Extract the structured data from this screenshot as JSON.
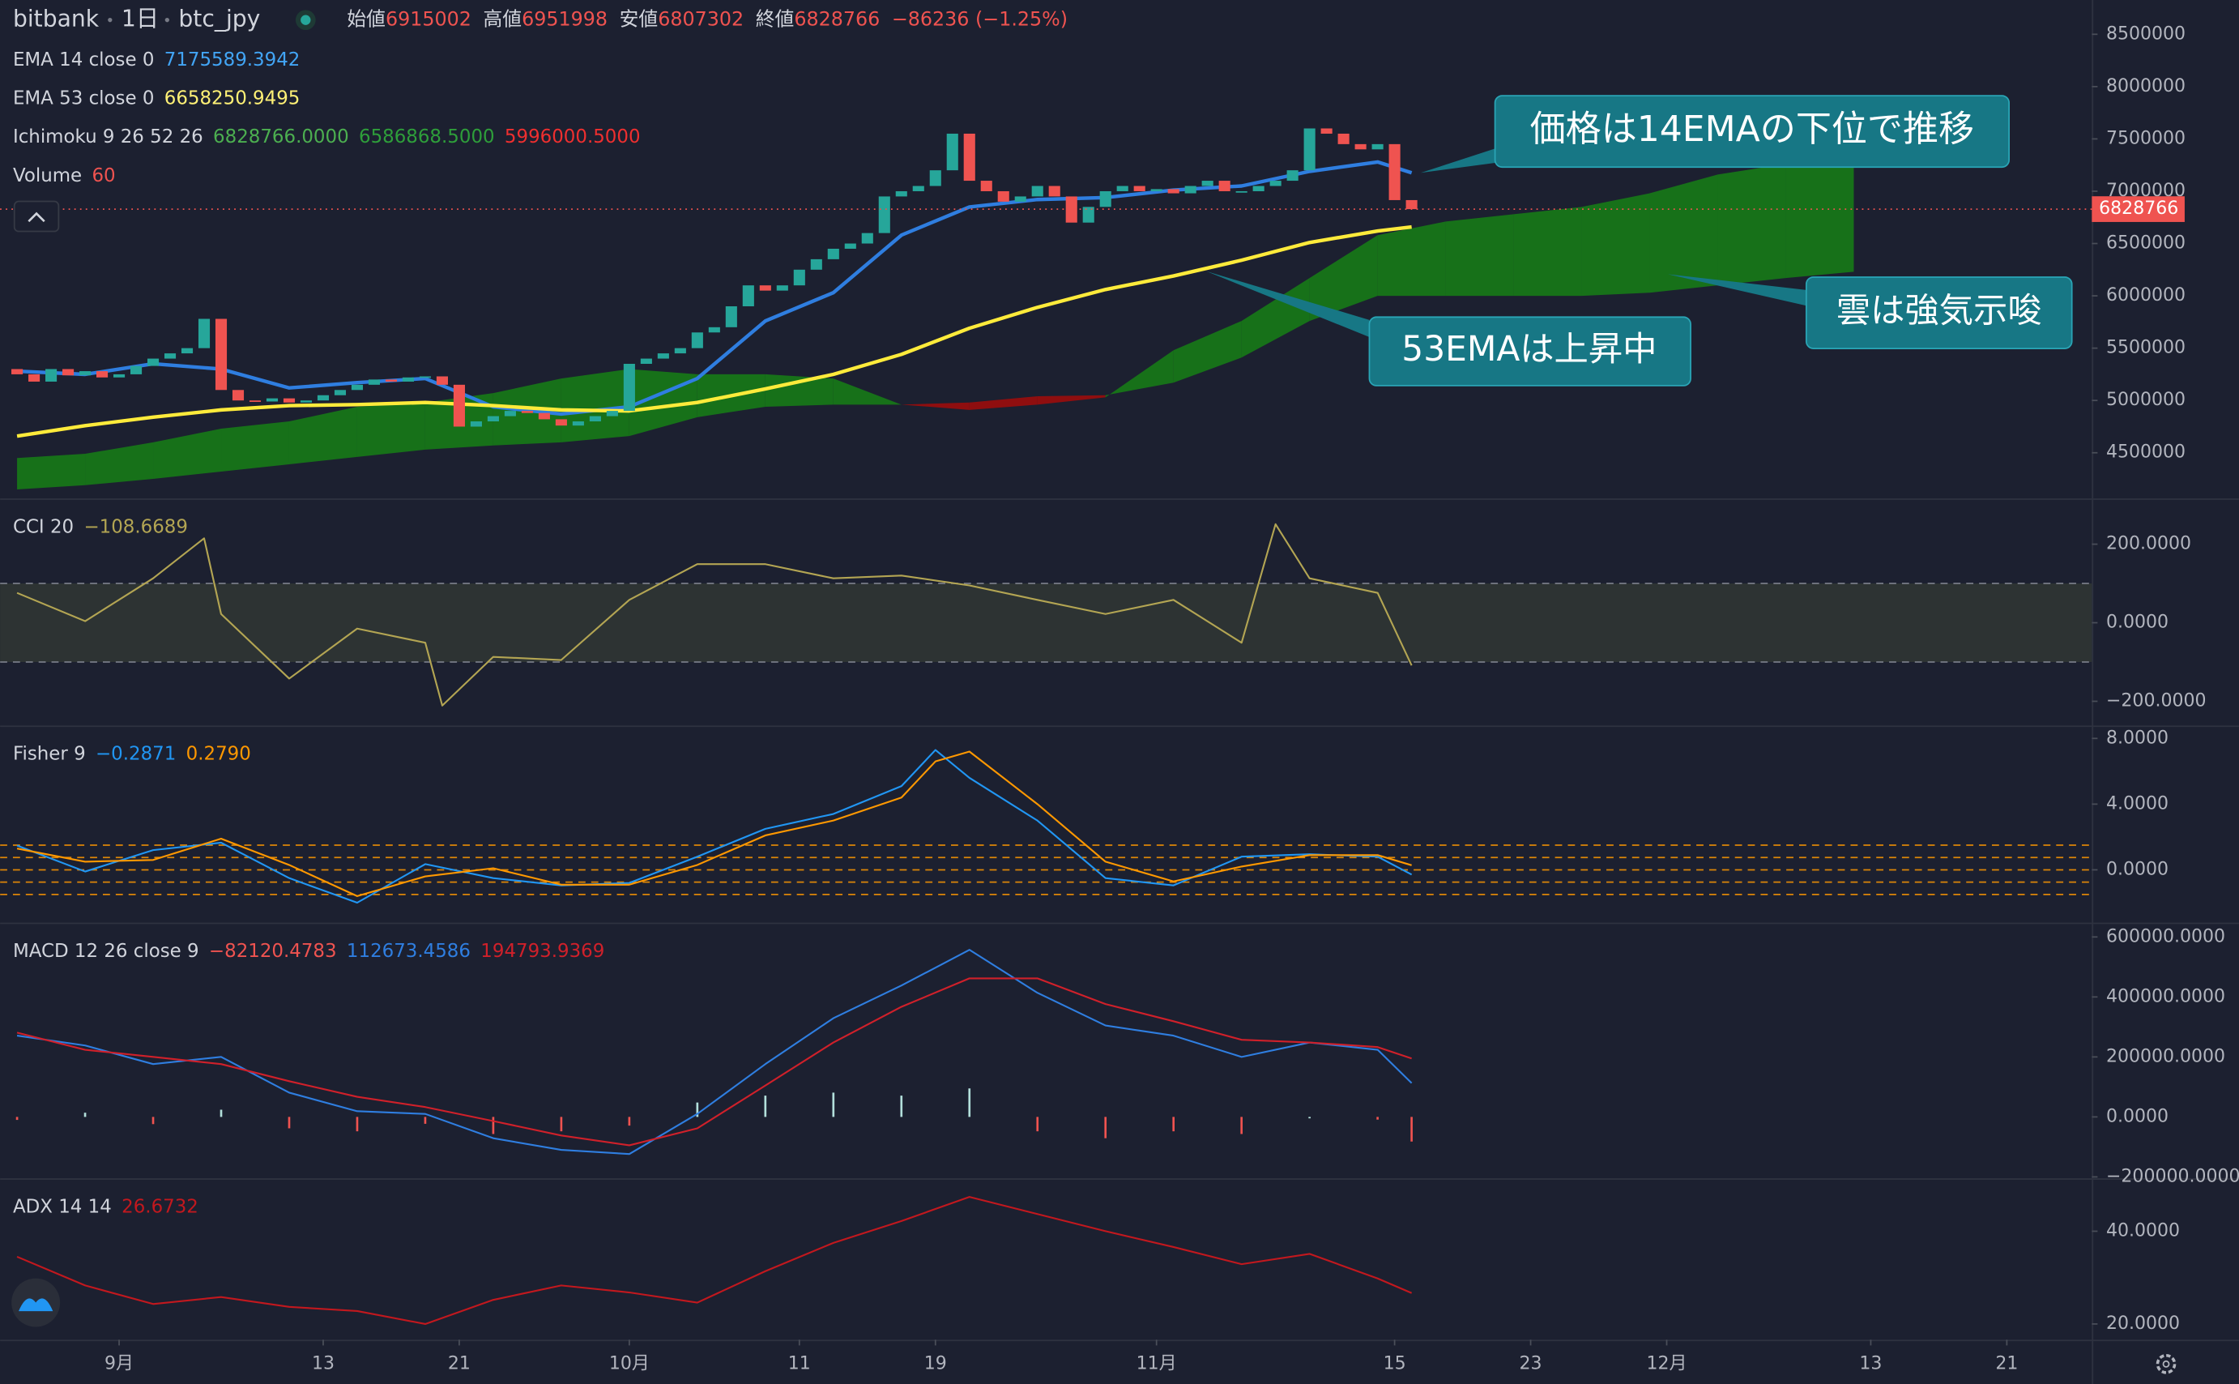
{
  "header": {
    "exchange": "bitbank",
    "interval": "1日",
    "symbol": "btc_jpy",
    "ohlc": [
      {
        "label": "始値",
        "value": "6915002"
      },
      {
        "label": "高値",
        "value": "6951998"
      },
      {
        "label": "安値",
        "value": "6807302"
      },
      {
        "label": "終値",
        "value": "6828766"
      }
    ],
    "change": "−86236 (−1.25%)"
  },
  "chart_data": [
    {
      "type": "candlestick",
      "xlim": [
        -1,
        122
      ],
      "ylim": [
        4063100,
        8827648
      ],
      "yticks": [
        4500000,
        5000000,
        5500000,
        6000000,
        6500000,
        7000000,
        7500000,
        8000000,
        8500000
      ],
      "up_color": "#26a69a",
      "down_color": "#ef5350",
      "open": [
        5300000,
        5250000,
        5180000,
        5300000,
        5240000,
        5280000,
        5220000,
        5250000,
        5330000,
        5400000,
        5450000,
        5500000,
        5780000,
        5100000,
        5000000,
        4990000,
        5020000,
        4980000,
        5000000,
        5050000,
        5100000,
        5150000,
        5200000,
        5180000,
        5220000,
        5230000,
        5150000,
        4750000,
        4800000,
        4850000,
        4900000,
        4880000,
        4820000,
        4760000,
        4800000,
        4850000,
        4900000,
        5350000,
        5400000,
        5450000,
        5500000,
        5650000,
        5700000,
        5900000,
        6100000,
        6050000,
        6100000,
        6250000,
        6350000,
        6450000,
        6500000,
        6600000,
        6950000,
        7000000,
        7050000,
        7200000,
        7550000,
        7100000,
        7000000,
        6900000,
        6950000,
        7050000,
        6950000,
        6700000,
        6850000,
        7000000,
        7050000,
        7000000,
        7020000,
        6980000,
        7050000,
        7100000,
        7000000,
        7000000,
        7050000,
        7100000,
        7200000,
        7600000,
        7550000,
        7450000,
        7400000,
        7450000,
        6915002
      ],
      "close": [
        5250000,
        5180000,
        5300000,
        5240000,
        5280000,
        5220000,
        5250000,
        5330000,
        5400000,
        5450000,
        5500000,
        5780000,
        5100000,
        5000000,
        4990000,
        5020000,
        4980000,
        5000000,
        5050000,
        5100000,
        5150000,
        5200000,
        5180000,
        5220000,
        5230000,
        5150000,
        4750000,
        4800000,
        4850000,
        4900000,
        4880000,
        4820000,
        4760000,
        4800000,
        4850000,
        4900000,
        5350000,
        5400000,
        5450000,
        5500000,
        5650000,
        5700000,
        5900000,
        6100000,
        6050000,
        6100000,
        6250000,
        6350000,
        6450000,
        6500000,
        6600000,
        6950000,
        7000000,
        7050000,
        7200000,
        7550000,
        7100000,
        7000000,
        6900000,
        6950000,
        7050000,
        6950000,
        6700000,
        6850000,
        7000000,
        7050000,
        7000000,
        7020000,
        6980000,
        7050000,
        7100000,
        7000000,
        7000000,
        7050000,
        7100000,
        7200000,
        7600000,
        7550000,
        7450000,
        7400000,
        7450000,
        6915002,
        6828766
      ],
      "series": [
        {
          "name": "EMA 14 close 0",
          "color": "#2f7ee0",
          "width": 2.5,
          "legend_value": "7175589.3942",
          "x": [
            0,
            4,
            8,
            12,
            16,
            20,
            24,
            28,
            32,
            36,
            40,
            44,
            48,
            52,
            56,
            60,
            64,
            68,
            72,
            76,
            80,
            82
          ],
          "values": [
            5280000,
            5250000,
            5350000,
            5300000,
            5120000,
            5170000,
            5210000,
            4940000,
            4870000,
            4940000,
            5210000,
            5760000,
            6030000,
            6580000,
            6850000,
            6920000,
            6940000,
            7010000,
            7050000,
            7190000,
            7280000,
            7175589.3942
          ]
        },
        {
          "name": "EMA 53 close 0",
          "color": "#ffeb3b",
          "width": 2.5,
          "legend_value": "6658250.9495",
          "x": [
            0,
            4,
            8,
            12,
            16,
            20,
            24,
            28,
            32,
            36,
            40,
            44,
            48,
            52,
            56,
            60,
            64,
            68,
            72,
            76,
            80,
            82
          ],
          "values": [
            4660000,
            4760000,
            4840000,
            4910000,
            4950000,
            4960000,
            4980000,
            4950000,
            4910000,
            4900000,
            4980000,
            5110000,
            5250000,
            5440000,
            5690000,
            5890000,
            6060000,
            6190000,
            6340000,
            6510000,
            6620000,
            6658250.9495
          ]
        }
      ],
      "cloud": {
        "name": "Ichimoku 9 26 52 26",
        "up_color": "#177a17",
        "down_color": "#9c0c0c",
        "legend_values": [
          {
            "text": "6828766.0000",
            "color": "#4caf50"
          },
          {
            "text": "6586868.5000",
            "color": "#2e9e3a"
          },
          {
            "text": "5996000.5000",
            "color": "#ef2f2f"
          }
        ],
        "x": [
          0,
          4,
          8,
          12,
          16,
          20,
          24,
          28,
          32,
          36,
          40,
          44,
          48,
          52,
          56,
          60,
          64,
          68,
          72,
          76,
          80,
          84,
          88,
          92,
          96,
          100,
          104,
          108
        ],
        "span_a": [
          4450000,
          4490000,
          4600000,
          4730000,
          4800000,
          4940000,
          4980000,
          5070000,
          5210000,
          5300000,
          5250000,
          5250000,
          5210000,
          4960000,
          4910000,
          4960000,
          5030000,
          5480000,
          5760000,
          6170000,
          6580000,
          6710000,
          6780000,
          6850000,
          6980000,
          7160000,
          7260000,
          7260000
        ],
        "span_b": [
          4150000,
          4190000,
          4250000,
          4320000,
          4390000,
          4460000,
          4530000,
          4570000,
          4600000,
          4660000,
          4840000,
          4940000,
          4960000,
          4960000,
          4980000,
          5040000,
          5050000,
          5170000,
          5410000,
          5760000,
          6000000,
          6000000,
          6000000,
          6000000,
          6030000,
          6100000,
          6170000,
          6230000
        ]
      },
      "volume": {
        "name": "Volume",
        "legend_value": "60",
        "color": "#ef5350"
      },
      "last_price": {
        "value": 6828766,
        "label": "6828766",
        "color": "#ef5350"
      },
      "annotations": [
        "価格は14EMAの下位で推移",
        "53EMAは上昇中",
        "雲は強気示唆"
      ]
    },
    {
      "type": "line",
      "title": "CCI 20",
      "xlim": [
        -1,
        122
      ],
      "ylim": [
        -261.8,
        312.7
      ],
      "yticks": [
        {
          "value": -200,
          "label": "−200.0000"
        },
        {
          "value": 0,
          "label": "0.0000"
        },
        {
          "value": 200,
          "label": "200.0000"
        }
      ],
      "band": [
        -100,
        100
      ],
      "band_color": "#3d4436",
      "series": [
        {
          "color": "#b3a553",
          "legend_value": "−108.6689",
          "x": [
            0,
            4,
            8,
            11,
            12,
            16,
            20,
            24,
            25,
            28,
            32,
            36,
            40,
            44,
            48,
            52,
            56,
            60,
            64,
            68,
            72,
            74,
            76,
            80,
            82
          ],
          "values": [
            76,
            4,
            113,
            215,
            22,
            -142,
            -15,
            -51,
            -211,
            -87,
            -95,
            58,
            149,
            149,
            113,
            120,
            95,
            58,
            22,
            58,
            -51,
            251,
            113,
            76,
            -108.6689
          ]
        }
      ]
    },
    {
      "type": "line",
      "title": "Fisher 9",
      "xlim": [
        -1,
        122
      ],
      "ylim": [
        -3.217,
        8.696
      ],
      "yticks": [
        {
          "value": 0,
          "label": "0.0000"
        },
        {
          "value": 4,
          "label": "4.0000"
        },
        {
          "value": 8,
          "label": "8.0000"
        }
      ],
      "levels": [
        1.5,
        0.75,
        0,
        -0.75,
        -1.5
      ],
      "level_color": "#ff9800",
      "series": [
        {
          "color": "#2196f3",
          "legend_value": "−0.2871",
          "x": [
            0,
            4,
            8,
            12,
            16,
            20,
            24,
            28,
            32,
            36,
            40,
            44,
            48,
            52,
            54,
            56,
            60,
            64,
            68,
            72,
            76,
            80,
            82
          ],
          "values": [
            1.48,
            -0.1,
            1.2,
            1.65,
            -0.5,
            -2.0,
            0.35,
            -0.5,
            -0.95,
            -0.8,
            0.8,
            2.5,
            3.4,
            5.1,
            7.3,
            5.6,
            3.0,
            -0.5,
            -0.95,
            0.8,
            0.95,
            0.8,
            -0.2871
          ]
        },
        {
          "color": "#ff9800",
          "legend_value": "0.2790",
          "x": [
            0,
            4,
            8,
            12,
            16,
            20,
            24,
            28,
            32,
            36,
            40,
            44,
            48,
            52,
            54,
            56,
            60,
            64,
            68,
            72,
            76,
            80,
            82
          ],
          "values": [
            1.3,
            0.5,
            0.6,
            1.9,
            0.3,
            -1.6,
            -0.4,
            0.1,
            -0.9,
            -0.9,
            0.3,
            2.1,
            3.0,
            4.4,
            6.6,
            7.2,
            4.0,
            0.5,
            -0.7,
            0.2,
            0.9,
            0.9,
            0.279
          ]
        }
      ]
    },
    {
      "type": "line",
      "title": "MACD 12 26 close 9",
      "xlim": [
        -1,
        122
      ],
      "ylim": [
        -204766,
        642870
      ],
      "yticks": [
        {
          "value": -200000,
          "label": "−200000.0000"
        },
        {
          "value": 0,
          "label": "0.0000"
        },
        {
          "value": 200000,
          "label": "200000.0000"
        },
        {
          "value": 400000,
          "label": "400000.0000"
        },
        {
          "value": 600000,
          "label": "600000.0000"
        }
      ],
      "series": [
        {
          "style": "histogram",
          "color": "#ef5350",
          "up_color": "#b2dfdb",
          "legend_value": "−82120.4783",
          "x": [
            0,
            4,
            8,
            12,
            16,
            20,
            24,
            28,
            32,
            36,
            40,
            44,
            48,
            52,
            56,
            60,
            64,
            68,
            72,
            76,
            80,
            82
          ],
          "values": [
            -10000,
            14000,
            -24000,
            24000,
            -38000,
            -48000,
            -23000,
            -57000,
            -48000,
            -29000,
            48000,
            71000,
            81000,
            71000,
            95000,
            -48000,
            -71000,
            -48000,
            -57000,
            0,
            -9000,
            -82120.4783
          ]
        },
        {
          "color": "#2f7ee0",
          "legend_value": "112673.4586",
          "x": [
            0,
            4,
            8,
            12,
            16,
            20,
            24,
            28,
            32,
            36,
            40,
            44,
            48,
            52,
            56,
            60,
            64,
            68,
            72,
            76,
            80,
            82
          ],
          "values": [
            271000,
            238000,
            176000,
            200000,
            81000,
            19000,
            10000,
            -71000,
            -110000,
            -124000,
            10000,
            176000,
            329000,
            438000,
            557000,
            414000,
            305000,
            271000,
            200000,
            248000,
            224000,
            112673.4586
          ]
        },
        {
          "color": "#d0202a",
          "legend_value": "194793.9369",
          "x": [
            0,
            4,
            8,
            12,
            16,
            20,
            24,
            28,
            32,
            36,
            40,
            44,
            48,
            52,
            56,
            60,
            64,
            68,
            72,
            76,
            80,
            82
          ],
          "values": [
            281000,
            224000,
            200000,
            176000,
            119000,
            67000,
            33000,
            -14000,
            -62000,
            -95000,
            -38000,
            105000,
            248000,
            367000,
            462000,
            462000,
            376000,
            319000,
            257000,
            248000,
            233000,
            194793.9369
          ]
        }
      ]
    },
    {
      "type": "line",
      "title": "ADX 14 14",
      "xlim": [
        -1,
        122
      ],
      "ylim": [
        16.6,
        51.1
      ],
      "yticks": [
        {
          "value": 20,
          "label": "20.0000"
        },
        {
          "value": 40,
          "label": "40.0000"
        }
      ],
      "xticks": [
        {
          "value": 6,
          "label": "9月"
        },
        {
          "value": 18,
          "label": "13"
        },
        {
          "value": 26,
          "label": "21"
        },
        {
          "value": 36,
          "label": "10月"
        },
        {
          "value": 46,
          "label": "11"
        },
        {
          "value": 54,
          "label": "19"
        },
        {
          "value": 67,
          "label": "11月"
        },
        {
          "value": 81,
          "label": "15"
        },
        {
          "value": 89,
          "label": "23"
        },
        {
          "value": 97,
          "label": "12月"
        },
        {
          "value": 109,
          "label": "13"
        },
        {
          "value": 117,
          "label": "21"
        }
      ],
      "series": [
        {
          "color": "#c2181e",
          "legend_value": "26.6732",
          "x": [
            0,
            4,
            8,
            12,
            16,
            20,
            24,
            28,
            32,
            36,
            40,
            44,
            48,
            52,
            56,
            60,
            64,
            68,
            72,
            76,
            80,
            82
          ],
          "values": [
            34.5,
            28.3,
            24.3,
            25.8,
            23.7,
            22.8,
            20.0,
            25.2,
            28.3,
            26.8,
            24.6,
            31.4,
            37.5,
            42.2,
            47.4,
            43.7,
            40,
            36.6,
            32.9,
            35.1,
            29.8,
            26.6732
          ]
        }
      ]
    }
  ]
}
